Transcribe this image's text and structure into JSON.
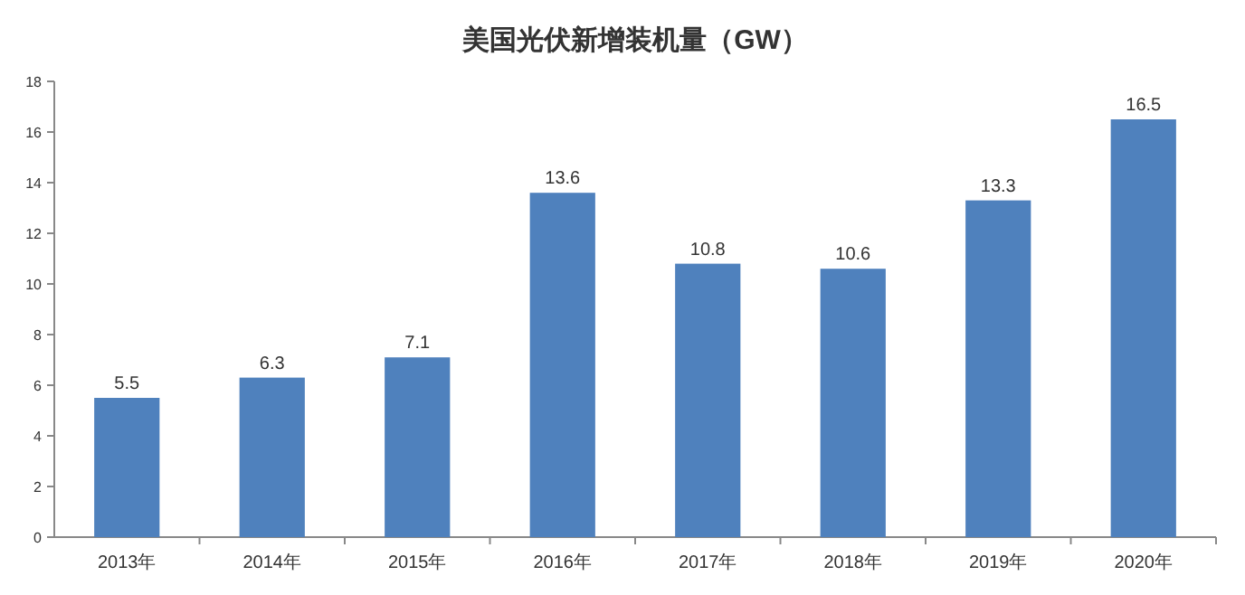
{
  "chart_data": {
    "type": "bar",
    "title": "美国光伏新增装机量（GW）",
    "categories": [
      "2013年",
      "2014年",
      "2015年",
      "2016年",
      "2017年",
      "2018年",
      "2019年",
      "2020年"
    ],
    "values": [
      5.5,
      6.3,
      7.1,
      13.6,
      10.8,
      10.6,
      13.3,
      16.5
    ],
    "color": "#4f81bd",
    "ylim": [
      0,
      18
    ],
    "yticks": [
      0,
      2,
      4,
      6,
      8,
      10,
      12,
      14,
      16,
      18
    ],
    "data_labels": true
  }
}
